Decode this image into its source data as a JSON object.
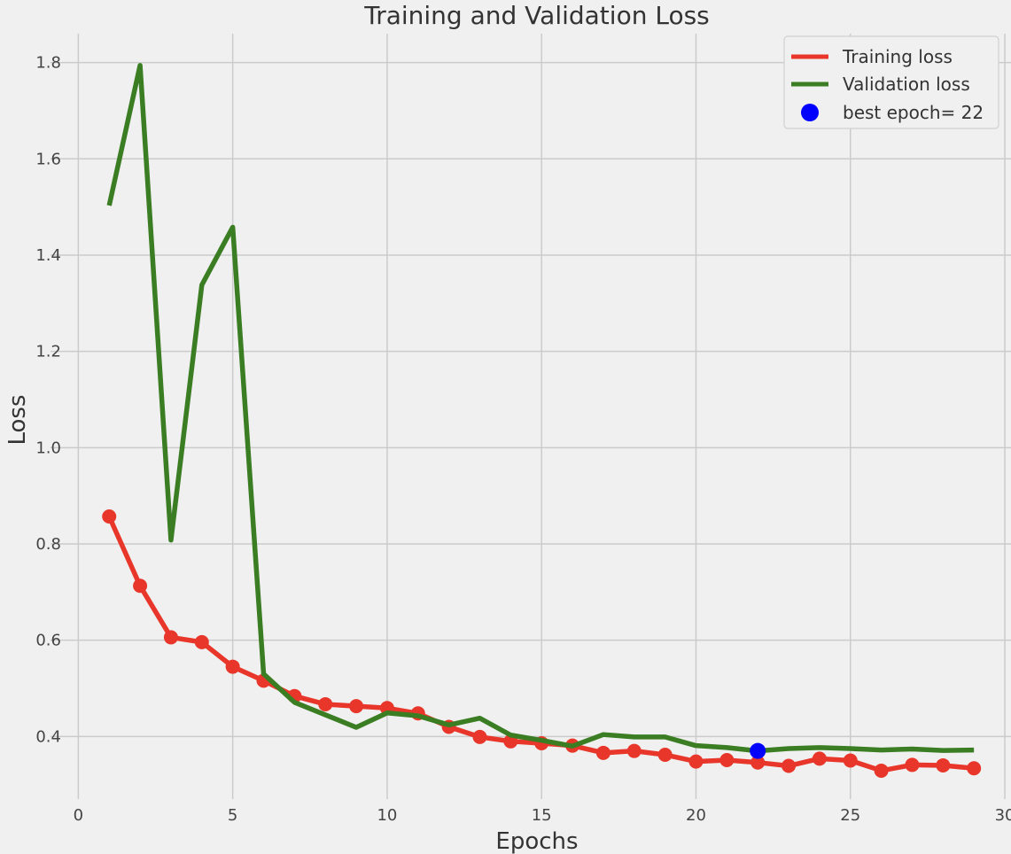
{
  "chart_data": {
    "type": "line",
    "title": "Training and Validation Loss",
    "xlabel": "Epochs",
    "ylabel": "Loss",
    "xlim": [
      -0.9,
      30.2
    ],
    "ylim": [
      0.27,
      1.86
    ],
    "x_ticks": [
      0,
      5,
      10,
      15,
      20,
      25,
      30
    ],
    "y_ticks": [
      0.4,
      0.6,
      0.8,
      1.0,
      1.2,
      1.4,
      1.6,
      1.8
    ],
    "x_tick_labels": [
      "0",
      "5",
      "10",
      "15",
      "20",
      "25",
      "30"
    ],
    "y_tick_labels": [
      "0.4",
      "0.6",
      "0.8",
      "1.0",
      "1.2",
      "1.4",
      "1.6",
      "1.8"
    ],
    "grid": true,
    "legend_position": "top-right",
    "x": [
      1,
      2,
      3,
      4,
      5,
      6,
      7,
      8,
      9,
      10,
      11,
      12,
      13,
      14,
      15,
      16,
      17,
      18,
      19,
      20,
      21,
      22,
      23,
      24,
      25,
      26,
      27,
      28,
      29
    ],
    "series": [
      {
        "name": "Training loss",
        "color": "#e8372a",
        "markers": true,
        "values": [
          0.857,
          0.713,
          0.606,
          0.596,
          0.545,
          0.516,
          0.484,
          0.467,
          0.463,
          0.459,
          0.448,
          0.42,
          0.399,
          0.39,
          0.386,
          0.381,
          0.366,
          0.37,
          0.362,
          0.348,
          0.351,
          0.346,
          0.339,
          0.354,
          0.35,
          0.329,
          0.341,
          0.34,
          0.334
        ]
      },
      {
        "name": "Validation loss",
        "color": "#3a7d22",
        "markers": false,
        "values": [
          1.503,
          1.794,
          0.808,
          1.338,
          1.458,
          0.53,
          0.471,
          0.445,
          0.419,
          0.449,
          0.443,
          0.424,
          0.438,
          0.403,
          0.392,
          0.38,
          0.404,
          0.399,
          0.399,
          0.381,
          0.377,
          0.37,
          0.375,
          0.377,
          0.375,
          0.372,
          0.374,
          0.371,
          0.372
        ]
      }
    ],
    "best_point": {
      "name": "best epoch= 22",
      "x": 22,
      "y": 0.37,
      "color": "#0000ff"
    }
  }
}
